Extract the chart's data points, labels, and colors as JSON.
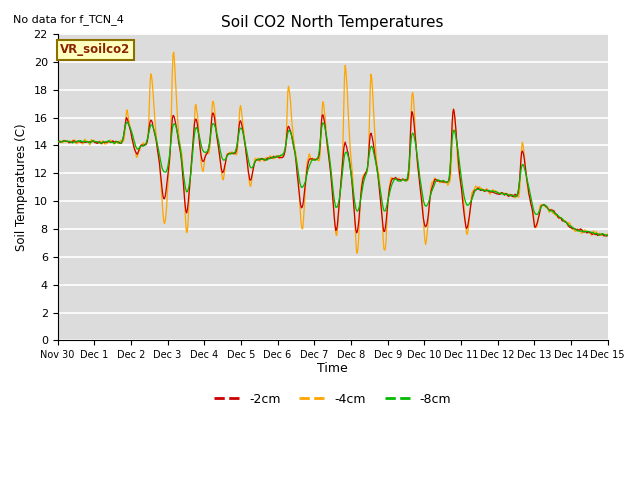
{
  "title": "Soil CO2 North Temperatures",
  "no_data_text": "No data for f_TCN_4",
  "vr_label": "VR_soilco2",
  "ylabel": "Soil Temperatures (C)",
  "xlabel": "Time",
  "ylim": [
    0,
    22
  ],
  "yticks": [
    0,
    2,
    4,
    6,
    8,
    10,
    12,
    14,
    16,
    18,
    20,
    22
  ],
  "xtick_labels": [
    "Nov 30",
    "Dec 1",
    "Dec 2",
    "Dec 3",
    "Dec 4",
    "Dec 5",
    "Dec 6",
    "Dec 7",
    "Dec 8",
    "Dec 9",
    "Dec 10",
    "Dec 11",
    "Dec 12",
    "Dec 13",
    "Dec 14",
    "Dec 15"
  ],
  "bg_color": "#dcdcdc",
  "grid_color": "#ffffff",
  "line_colors_2cm": "#cc0000",
  "line_colors_4cm": "#ffa500",
  "line_colors_8cm": "#00bb00",
  "legend_labels": [
    "-2cm",
    "-4cm",
    "-8cm"
  ],
  "legend_colors": [
    "#cc0000",
    "#ffa500",
    "#00bb00"
  ],
  "n_days": 16,
  "pts_per_day": 48
}
